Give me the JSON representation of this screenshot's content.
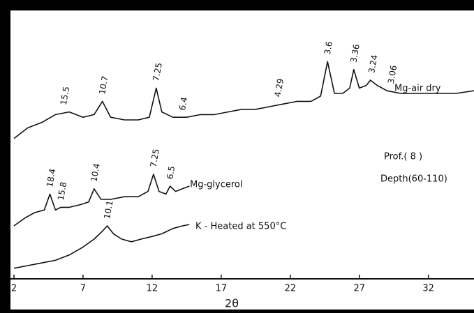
{
  "chart_data": {
    "type": "line",
    "x_label": "2θ",
    "xlim": [
      2,
      35.3
    ],
    "xticks": [
      2,
      7,
      12,
      17,
      22,
      27,
      32
    ],
    "ylim": [
      0,
      100
    ],
    "notes": [
      "Prof.( 8 )",
      "Depth(60-110)"
    ],
    "series": [
      {
        "name": "Mg-air dry",
        "color": "#111111",
        "x": [
          2,
          3,
          4,
          5,
          6,
          7,
          7.8,
          8.4,
          9,
          10,
          11,
          11.8,
          12.3,
          12.7,
          13.5,
          14.5,
          15.5,
          16.5,
          17.5,
          18.5,
          19.5,
          20.5,
          21.5,
          22.5,
          23.5,
          24.2,
          24.7,
          25.2,
          25.8,
          26.3,
          26.6,
          27,
          27.5,
          27.8,
          28.3,
          29,
          30,
          31,
          32,
          33,
          34,
          35.3
        ],
        "values": [
          53,
          57,
          59,
          62,
          63,
          61,
          62,
          67,
          61,
          60,
          60,
          61,
          72,
          63,
          61,
          61,
          62,
          62,
          63,
          64,
          64,
          65,
          66,
          67,
          67,
          69,
          82,
          70,
          70,
          72,
          79,
          72,
          73,
          75,
          73,
          71,
          70,
          70,
          70,
          70,
          70,
          71
        ],
        "peak_labels": [
          {
            "text": "15.5",
            "x": 5.6
          },
          {
            "text": "10.7",
            "x": 8.4
          },
          {
            "text": "7.25",
            "x": 12.3
          },
          {
            "text": "6.4",
            "x": 14.2
          },
          {
            "text": "4.29",
            "x": 21.1
          },
          {
            "text": "3.6",
            "x": 24.7
          },
          {
            "text": "3.36",
            "x": 26.6
          },
          {
            "text": "3.24",
            "x": 27.9
          },
          {
            "text": "3.06",
            "x": 29.3
          }
        ]
      },
      {
        "name": "Mg-glycerol",
        "color": "#111111",
        "x": [
          2,
          2.8,
          3.5,
          4.2,
          4.6,
          5,
          5.4,
          6,
          6.8,
          7.4,
          7.8,
          8.3,
          9,
          10,
          11,
          11.7,
          12.1,
          12.5,
          13,
          13.3,
          13.7,
          14.2,
          14.7
        ],
        "values": [
          20,
          23,
          25,
          26,
          32,
          26,
          27,
          27,
          28,
          29,
          34,
          30,
          30,
          31,
          31,
          33,
          39.5,
          33,
          32,
          35,
          33,
          34,
          35
        ],
        "peak_labels": [
          {
            "text": "18.4",
            "x": 4.6
          },
          {
            "text": "15.8",
            "x": 5.4
          },
          {
            "text": "10.4",
            "x": 7.8
          },
          {
            "text": "7.25",
            "x": 12.1
          },
          {
            "text": "6.5",
            "x": 13.3
          }
        ]
      },
      {
        "name": "K - Heated at 550°C",
        "color": "#111111",
        "x": [
          2,
          3,
          4,
          5,
          6,
          7,
          7.8,
          8.4,
          8.75,
          9.2,
          9.8,
          10.5,
          11.2,
          12,
          12.7,
          13.5,
          14.2,
          14.7
        ],
        "values": [
          4,
          5,
          6,
          7,
          9,
          12,
          15,
          18,
          20,
          17,
          15,
          14,
          15,
          16,
          17,
          19,
          20,
          20.5
        ],
        "peak_labels": [
          {
            "text": "10.1",
            "x": 8.75
          }
        ]
      }
    ]
  }
}
